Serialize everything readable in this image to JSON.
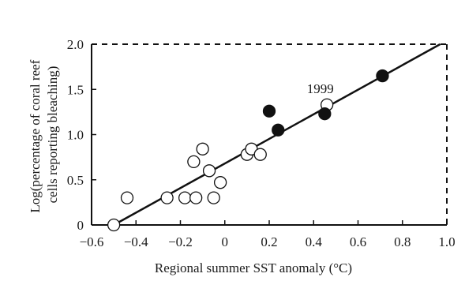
{
  "chart_data": {
    "type": "scatter",
    "xlabel": "Regional summer SST anomaly (°C)",
    "ylabel_line1": "Log(percentage of coral reef",
    "ylabel_line2": "cells reporting bleaching)",
    "xlim": [
      -0.6,
      1.0
    ],
    "ylim": [
      0,
      2.0
    ],
    "x_ticks": [
      -0.6,
      -0.4,
      -0.2,
      0,
      0.2,
      0.4,
      0.6,
      0.8,
      1.0
    ],
    "x_tick_labels": [
      "−0.6",
      "−0.4",
      "−0.2",
      "0",
      "0.2",
      "0.4",
      "0.6",
      "0.8",
      "1.0"
    ],
    "y_ticks": [
      0,
      0.5,
      1.0,
      1.5,
      2.0
    ],
    "y_tick_labels": [
      "0",
      "0.5",
      "1.0",
      "1.5",
      "2.0"
    ],
    "frame_style": "solid left and bottom axes, dashed top and right borders",
    "grid": false,
    "series": [
      {
        "marker": "open-circle",
        "points": [
          {
            "x": -0.5,
            "y": 0.0
          },
          {
            "x": -0.44,
            "y": 0.3
          },
          {
            "x": -0.26,
            "y": 0.3
          },
          {
            "x": -0.18,
            "y": 0.3
          },
          {
            "x": -0.13,
            "y": 0.3
          },
          {
            "x": -0.14,
            "y": 0.7
          },
          {
            "x": -0.1,
            "y": 0.84
          },
          {
            "x": -0.07,
            "y": 0.6
          },
          {
            "x": -0.05,
            "y": 0.3
          },
          {
            "x": -0.02,
            "y": 0.47
          },
          {
            "x": 0.1,
            "y": 0.78
          },
          {
            "x": 0.12,
            "y": 0.84
          },
          {
            "x": 0.16,
            "y": 0.78
          },
          {
            "x": 0.46,
            "y": 1.33
          }
        ]
      },
      {
        "marker": "filled-circle",
        "points": [
          {
            "x": 0.2,
            "y": 1.26
          },
          {
            "x": 0.24,
            "y": 1.05
          },
          {
            "x": 0.45,
            "y": 1.23
          },
          {
            "x": 0.71,
            "y": 1.65
          }
        ]
      }
    ],
    "fit_line": {
      "x": [
        -0.5,
        0.97
      ],
      "y": [
        0.0,
        2.0
      ]
    },
    "annotations": [
      {
        "text": "1999",
        "x": 0.43,
        "y": 1.51
      }
    ]
  }
}
